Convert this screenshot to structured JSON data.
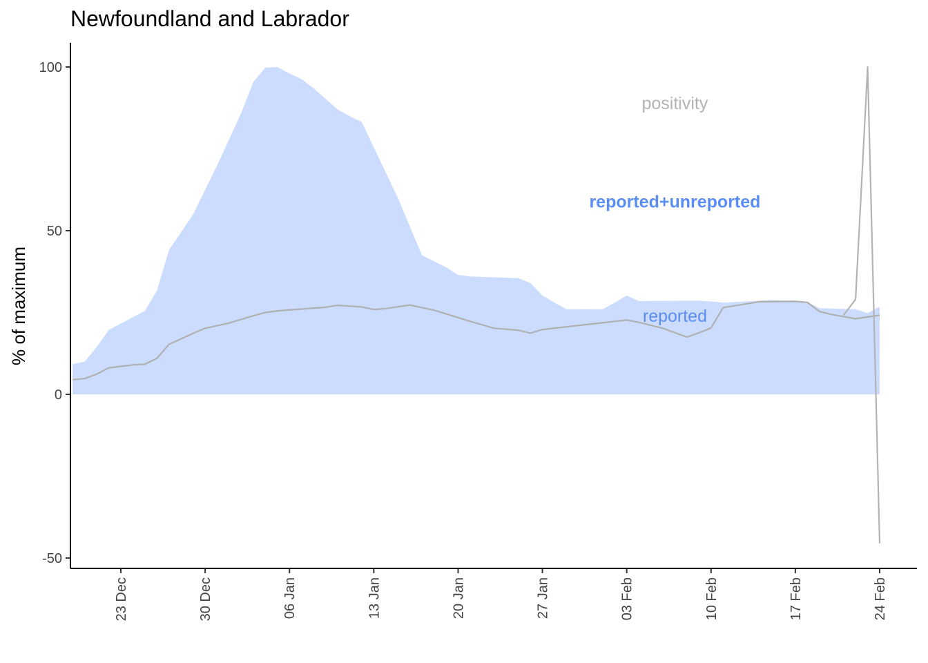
{
  "chart_data": {
    "type": "area",
    "title": "Newfoundland and Labrador",
    "xlabel": "",
    "ylabel": "% of maximum",
    "ylim": [
      -52,
      107
    ],
    "xlim": [
      "2020-12-20",
      "2021-02-26"
    ],
    "yticks": [
      -50,
      0,
      50,
      100
    ],
    "xticks": [
      {
        "date": "2020-12-23",
        "label": "23 Dec"
      },
      {
        "date": "2020-12-30",
        "label": "30 Dec"
      },
      {
        "date": "2021-01-06",
        "label": "06 Jan"
      },
      {
        "date": "2021-01-13",
        "label": "13 Jan"
      },
      {
        "date": "2021-01-20",
        "label": "20 Jan"
      },
      {
        "date": "2021-01-27",
        "label": "27 Jan"
      },
      {
        "date": "2021-02-03",
        "label": "03 Feb"
      },
      {
        "date": "2021-02-10",
        "label": "10 Feb"
      },
      {
        "date": "2021-02-17",
        "label": "17 Feb"
      },
      {
        "date": "2021-02-24",
        "label": "24 Feb"
      }
    ],
    "grid": false,
    "legend": "none",
    "series": [
      {
        "name": "reported+unreported",
        "kind": "area",
        "color": "#ccdcfe",
        "label_color": "#5b8ef5",
        "x": [
          "2020-12-19",
          "2020-12-20",
          "2020-12-21",
          "2020-12-22",
          "2020-12-25",
          "2020-12-26",
          "2020-12-27",
          "2020-12-28",
          "2020-12-29",
          "2020-12-31",
          "2021-01-02",
          "2021-01-03",
          "2021-01-04",
          "2021-01-05",
          "2021-01-06",
          "2021-01-07",
          "2021-01-08",
          "2021-01-10",
          "2021-01-11",
          "2021-01-12",
          "2021-01-15",
          "2021-01-17",
          "2021-01-19",
          "2021-01-20",
          "2021-01-21",
          "2021-01-25",
          "2021-01-26",
          "2021-01-27",
          "2021-01-28",
          "2021-01-29",
          "2021-02-01",
          "2021-02-02",
          "2021-02-03",
          "2021-02-04",
          "2021-02-09",
          "2021-02-10",
          "2021-02-11",
          "2021-02-15",
          "2021-02-17",
          "2021-02-18",
          "2021-02-19",
          "2021-02-22",
          "2021-02-23",
          "2021-02-24"
        ],
        "y": [
          9.2,
          10,
          14.5,
          19.7,
          25.5,
          31.7,
          44.1,
          49.5,
          55,
          70,
          86,
          95.4,
          99.8,
          100,
          98,
          96.3,
          93.5,
          87,
          85,
          83.2,
          60,
          42.5,
          38.8,
          36.5,
          36,
          35.5,
          34,
          30.2,
          28,
          26,
          26,
          28,
          30.2,
          28.5,
          28.6,
          28.4,
          28,
          28.8,
          28.6,
          28.2,
          26.3,
          26,
          24.8,
          26.8
        ]
      },
      {
        "name": "reported",
        "kind": "line",
        "color": "#b0b0b0",
        "label_color": "#5b8ef5",
        "x": [
          "2020-12-19",
          "2020-12-20",
          "2020-12-21",
          "2020-12-22",
          "2020-12-24",
          "2020-12-25",
          "2020-12-26",
          "2020-12-27",
          "2020-12-29",
          "2020-12-30",
          "2021-01-01",
          "2021-01-03",
          "2021-01-04",
          "2021-01-05",
          "2021-01-09",
          "2021-01-10",
          "2021-01-12",
          "2021-01-13",
          "2021-01-14",
          "2021-01-16",
          "2021-01-17",
          "2021-01-18",
          "2021-01-19",
          "2021-01-21",
          "2021-01-23",
          "2021-01-25",
          "2021-01-26",
          "2021-01-27",
          "2021-02-03",
          "2021-02-04",
          "2021-02-06",
          "2021-02-08",
          "2021-02-09",
          "2021-02-10",
          "2021-02-11",
          "2021-02-14",
          "2021-02-17",
          "2021-02-18",
          "2021-02-19",
          "2021-02-20",
          "2021-02-22",
          "2021-02-24"
        ],
        "y": [
          4.5,
          4.8,
          6.2,
          8.1,
          9,
          9.2,
          11,
          15.3,
          18.6,
          20.2,
          21.8,
          24,
          25,
          25.5,
          26.6,
          27.2,
          26.7,
          25.9,
          26.2,
          27.3,
          26.5,
          25.7,
          24.6,
          22.3,
          20.2,
          19.6,
          18.7,
          19.8,
          22.7,
          22,
          20.2,
          17.5,
          18.8,
          20.3,
          26.5,
          28.3,
          28.4,
          28.1,
          25.3,
          24.4,
          23.1,
          24.2
        ]
      },
      {
        "name": "positivity",
        "kind": "line",
        "color": "#b3b3b3",
        "label_color": "#b3b3b3",
        "x": [
          "2021-02-21",
          "2021-02-22",
          "2021-02-23",
          "2021-02-24"
        ],
        "y": [
          24.2,
          29,
          100,
          -45.5
        ]
      }
    ],
    "annotations": [
      {
        "text": "positivity",
        "x": "2021-02-07",
        "y": 89,
        "color": "#b3b3b3",
        "bold": false
      },
      {
        "text": "reported+unreported",
        "x": "2021-02-07",
        "y": 59,
        "color": "#5b8ef5",
        "bold": true
      },
      {
        "text": "reported",
        "x": "2021-02-07",
        "y": 24,
        "color": "#5b8ef5",
        "bold": false
      }
    ]
  }
}
